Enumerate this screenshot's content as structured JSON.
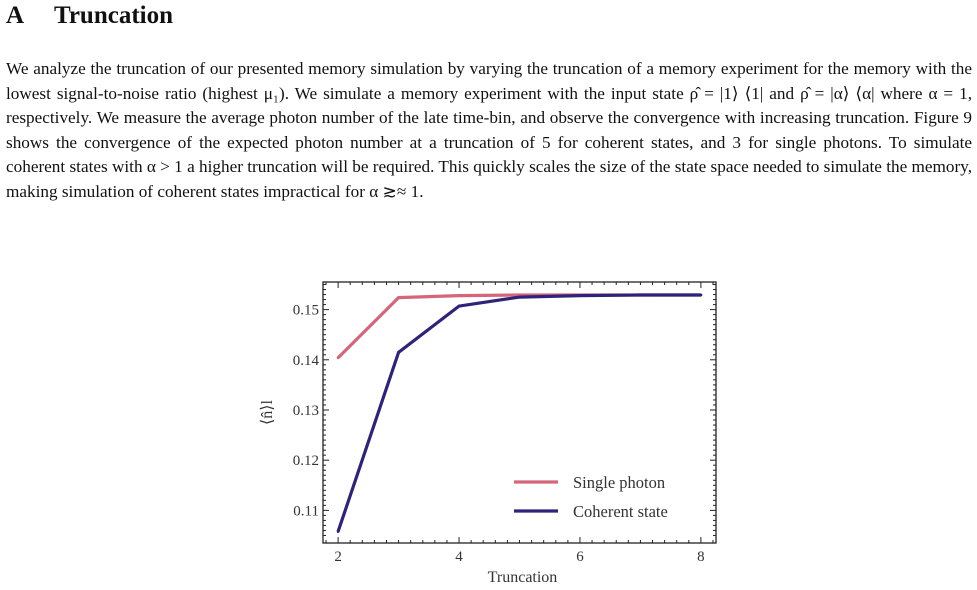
{
  "section": {
    "number": "A",
    "title": "Truncation"
  },
  "paragraph": "We analyze the truncation of our presented memory simulation by varying the truncation of a memory experiment for the memory with the lowest signal-to-noise ratio (highest μ₁). We simulate a memory experiment with the input state ρ̂ = |1⟩ ⟨1| and ρ̂ = |α⟩ ⟨α| where α = 1, respectively. We measure the average photon number of the late time-bin, and observe the convergence with increasing truncation. Figure 9 shows the convergence of the expected photon number at a truncation of 5 for coherent states, and 3 for single photons. To simulate coherent states with α > 1 a higher truncation will be required. This quickly scales the size of the state space needed to simulate the memory, making simulation of coherent states impractical for α ≳≈ 1.",
  "chart_data": {
    "type": "line",
    "title": "",
    "xlabel": "Truncation",
    "ylabel": "⟨n̂⟩l",
    "xlim": [
      1.75,
      8.25
    ],
    "ylim": [
      0.1035,
      0.1555
    ],
    "xticks": [
      2,
      4,
      6,
      8
    ],
    "yticks": [
      0.11,
      0.12,
      0.13,
      0.14,
      0.15
    ],
    "ytick_labels": [
      "0.11",
      "0.12",
      "0.13",
      "0.14",
      "0.15"
    ],
    "grid": false,
    "legend_position": "lower-right",
    "series": [
      {
        "name": "Single photon",
        "color": "#d5667a",
        "x": [
          2,
          3,
          4,
          5,
          6,
          7,
          8
        ],
        "y": [
          0.1404,
          0.1524,
          0.1528,
          0.1529,
          0.1529,
          0.1529,
          0.1529
        ]
      },
      {
        "name": "Coherent state",
        "color": "#2d2479",
        "x": [
          2,
          3,
          4,
          5,
          6,
          7,
          8
        ],
        "y": [
          0.1058,
          0.1415,
          0.1507,
          0.1525,
          0.1528,
          0.1529,
          0.1529
        ]
      }
    ]
  }
}
